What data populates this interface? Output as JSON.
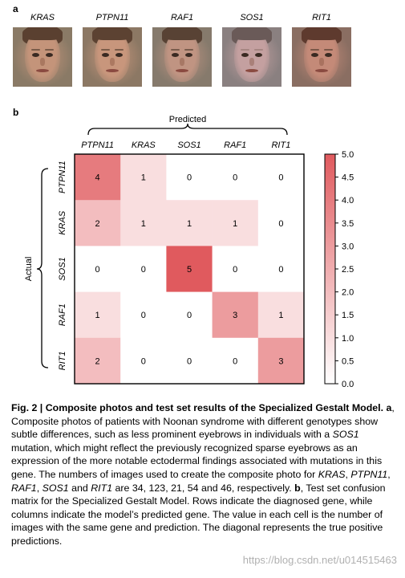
{
  "panel_a": {
    "letter": "a"
  },
  "panel_b": {
    "letter": "b"
  },
  "faces": [
    {
      "label": "KRAS",
      "bg": "#8a7a66",
      "skin": "#c4947a",
      "hair": "#5a4030"
    },
    {
      "label": "PTPN11",
      "bg": "#8c7864",
      "skin": "#c8967c",
      "hair": "#5c4232"
    },
    {
      "label": "RAF1",
      "bg": "#867a6c",
      "skin": "#c09482",
      "hair": "#584234"
    },
    {
      "label": "SOS1",
      "bg": "#8a8080",
      "skin": "#c4a0a0",
      "hair": "#6a5a58"
    },
    {
      "label": "RIT1",
      "bg": "#8a6e62",
      "skin": "#c48a78",
      "hair": "#5e3a2e"
    }
  ],
  "chart_data": {
    "type": "heatmap",
    "title": "",
    "xlabel": "Predicted",
    "ylabel": "Actual",
    "columns": [
      "PTPN11",
      "KRAS",
      "SOS1",
      "RAF1",
      "RIT1"
    ],
    "rows": [
      "PTPN11",
      "KRAS",
      "SOS1",
      "RAF1",
      "RIT1"
    ],
    "values": [
      [
        4,
        1,
        0,
        0,
        0
      ],
      [
        2,
        1,
        1,
        1,
        0
      ],
      [
        0,
        0,
        5,
        0,
        0
      ],
      [
        1,
        0,
        0,
        3,
        1
      ],
      [
        2,
        0,
        0,
        0,
        3
      ]
    ],
    "colorbar": {
      "min": 0,
      "max": 5,
      "ticks": [
        "5.0",
        "4.5",
        "4.0",
        "3.5",
        "3.0",
        "2.5",
        "2.0",
        "1.5",
        "1.0",
        "0.5",
        "0.0"
      ],
      "color_low": "#ffffff",
      "color_high": "#e05a5e"
    }
  },
  "caption": {
    "fig_label": "Fig. 2 | Composite photos and test set results of the Specialized Gestalt Model.",
    "a_label": "a",
    "text_a1": ", Composite photos of patients with Noonan syndrome with different genotypes show subtle differences, such as less prominent eyebrows in individuals with a ",
    "gene_sos1": "SOS1",
    "text_a2": " mutation, which might reflect the previously recognized sparse eyebrows as an expression of the more notable ectodermal findings associated with mutations in this gene. The numbers of images used to create the composite photo for ",
    "gene_kras": "KRAS",
    "sep1": ", ",
    "gene_ptpn11": "PTPN11",
    "sep2": ", ",
    "gene_raf1": "RAF1",
    "sep3": ", ",
    "gene_sos1b": "SOS1",
    "sep4": " and ",
    "gene_rit1": "RIT1",
    "text_a3": " are 34, 123, 21, 54 and 46, respectively. ",
    "b_label": "b",
    "text_b": ", Test set confusion matrix for the Specialized Gestalt Model. Rows indicate the diagnosed gene, while columns indicate the model’s predicted gene. The value in each cell is the number of images with the same gene and prediction. The diagonal represents the true positive predictions."
  },
  "watermark": "https://blog.csdn.net/u014515463"
}
